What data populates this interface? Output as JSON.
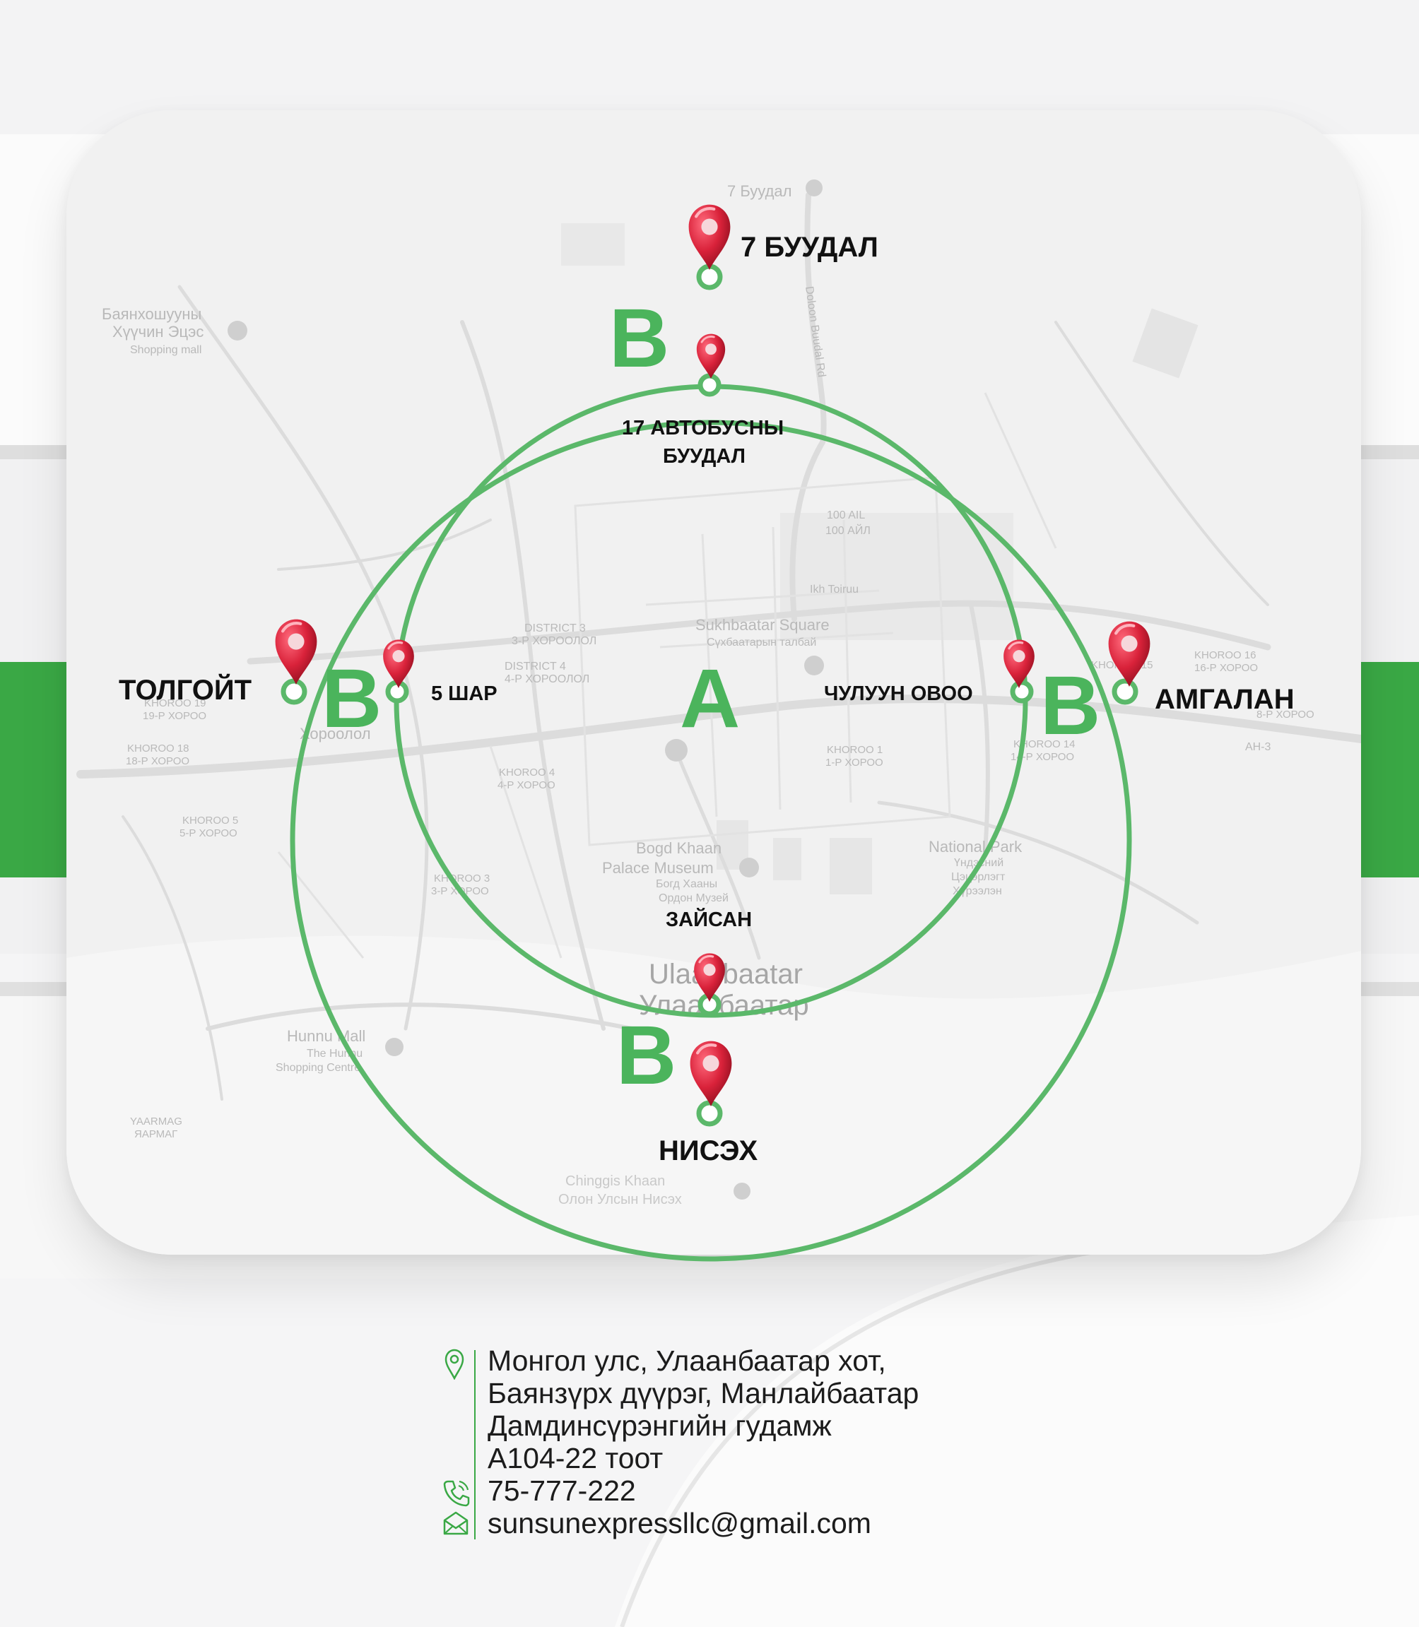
{
  "colors": {
    "brand_green": "#3aa845",
    "ring_green": "#5bb86a",
    "zone_letter_green": "#4bb45c",
    "pin_red": "#d9223a"
  },
  "zones": {
    "inner": "A",
    "outer": "B"
  },
  "places": {
    "seven_buudal": "7 БУУДАЛ",
    "bus17_line1": "17 АВТОБУСНЫ",
    "bus17_line2": "БУУДАЛ",
    "tolgoit": "ТОЛГОЙТ",
    "five_shar": "5 ШАР",
    "chuluun_ovoo": "ЧУЛУУН ОВОО",
    "amgalan": "АМГАЛАН",
    "zaisan": "ЗАЙСАН",
    "nisekh": "НИСЭХ"
  },
  "base_map_labels": {
    "bayankhoshuu_1": "Баянхошууны",
    "bayankhoshuu_2": "Хүүчин Эцэс",
    "bayankhoshuu_3": "Shopping mall",
    "dolon_buudal_road": "Doloon Buudal Rd",
    "seven_buudal_map": "7 Буудал",
    "ail_100_1": "100 AIL",
    "ail_100_2": "100 АЙЛ",
    "ikh_toiruu": "Ikh Toiruu",
    "district3_1": "DISTRICT 3",
    "district3_2": "3-Р ХОРООЛОЛ",
    "district4_1": "DISTRICT 4",
    "district4_2": "4-Р ХОРООЛОЛ",
    "sukhbaatar_1": "Sukhbaatar Square",
    "sukhbaatar_2": "Сүхбаатарын талбай",
    "khoroo15_1": "KHOROO 15",
    "khoroo16_1": "KHOROO 16",
    "khoroo16_2": "16-Р ХОРОО",
    "khoroo8_2": "8-Р ХОРОО",
    "ah3": "AH-3",
    "khoroo19_1": "KHOROO 19",
    "khoroo19_2": "19-Р ХОРОО",
    "khoroolol": "Хороолол",
    "khoroo18_1": "KHOROO 18",
    "khoroo18_2": "18-Р ХОРОО",
    "khoroo1_1": "KHOROO 1",
    "khoroo1_2": "1-Р ХОРОО",
    "khoroo14_1": "KHOROO 14",
    "khoroo14_2": "14-Р ХОРОО",
    "khoroo4_1": "KHOROO 4",
    "khoroo4_2": "4-Р ХОРОО",
    "khoroo5_1": "KHOROO 5",
    "khoroo5_2": "5-Р ХОРОО",
    "bogd_1": "Bogd Khaan",
    "bogd_2": "Palace Museum",
    "bogd_3": "Богд Хааны",
    "bogd_4": "Ордон Музей",
    "national_park_1": "National Park",
    "national_park_2": "Үндэсний",
    "national_park_3": "Цэцэрлэгт",
    "national_park_4": "Хүрээлэн",
    "khoroo3_1": "KHOROO 3",
    "khoroo3_2": "3-Р ХОРОО",
    "ulaanbaatar_1": "Ulaanbaatar",
    "ulaanbaatar_2": "Улаанбаатар",
    "hunnu_1": "Hunnu Mall",
    "hunnu_2": "The Hunnu",
    "hunnu_3": "Shopping Centre",
    "yarmag_1": "YAARMAG",
    "yarmag_2": "ЯАРМАГ",
    "chinggis_1": "Chinggis Khaan",
    "chinggis_2": "Олон Улсын Нисэх"
  },
  "contact": {
    "address_1": "Монгол улс, Улаанбаатар хот,",
    "address_2": "Баянзүрх дүүрэг, Манлайбаатар",
    "address_3": "Дамдинсүрэнгийн гудамж",
    "address_4": "А104-22 тоот",
    "phone": "75-777-222",
    "email": "sunsunexpressllc@gmail.com"
  },
  "icons": {
    "address": "location-pin-icon",
    "phone": "phone-icon",
    "email": "envelope-icon",
    "marker": "map-marker-icon"
  }
}
